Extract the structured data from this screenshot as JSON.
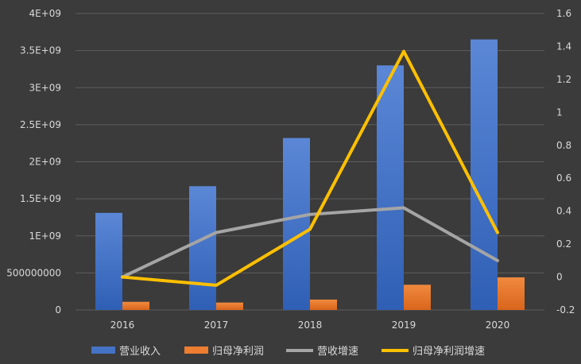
{
  "chart_data": {
    "type": "bar",
    "categories": [
      "2016",
      "2017",
      "2018",
      "2019",
      "2020"
    ],
    "series": [
      {
        "name": "营业收入",
        "type": "bar",
        "axis": "left",
        "color": "#4472c4",
        "values": [
          1310000000,
          1670000000,
          2320000000,
          3300000000,
          3650000000
        ]
      },
      {
        "name": "归母净利润",
        "type": "bar",
        "axis": "left",
        "color": "#ed7d31",
        "values": [
          110000000,
          100000000,
          140000000,
          340000000,
          440000000
        ]
      },
      {
        "name": "营收增速",
        "type": "line",
        "axis": "right",
        "color": "#a5a5a5",
        "values": [
          0.0,
          0.27,
          0.38,
          0.42,
          0.1
        ]
      },
      {
        "name": "归母净利润增速",
        "type": "line",
        "axis": "right",
        "color": "#ffc000",
        "values": [
          0.0,
          -0.05,
          0.29,
          1.37,
          0.27
        ]
      }
    ],
    "y_left": {
      "ylim": [
        0,
        4000000000
      ],
      "tick_labels": [
        "0",
        "500000000",
        "1E+09",
        "1.5E+09",
        "2E+09",
        "2.5E+09",
        "3E+09",
        "3.5E+09",
        "4E+09"
      ],
      "tick_values": [
        0,
        500000000,
        1000000000,
        1500000000,
        2000000000,
        2500000000,
        3000000000,
        3500000000,
        4000000000
      ]
    },
    "y_right": {
      "ylim": [
        -0.2,
        1.6
      ],
      "tick_labels": [
        "-0.2",
        "0",
        "0.2",
        "0.4",
        "0.6",
        "0.8",
        "1",
        "1.2",
        "1.4",
        "1.6"
      ],
      "tick_values": [
        -0.2,
        0,
        0.2,
        0.4,
        0.6,
        0.8,
        1.0,
        1.2,
        1.4,
        1.6
      ]
    },
    "grid": true,
    "legend_position": "bottom",
    "background_color": "#3b3b3b",
    "grid_color": "#5e5e5e",
    "text_color": "#d9d9d9"
  }
}
